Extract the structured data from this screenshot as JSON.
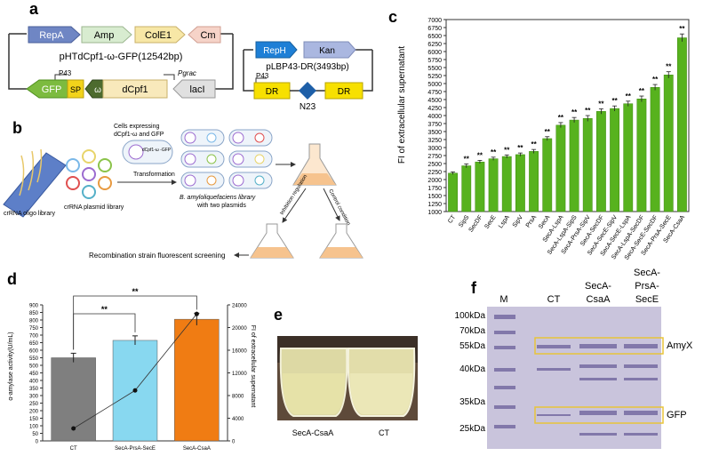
{
  "panel_a": {
    "letter": "a",
    "plasmid1": {
      "genes_top": [
        {
          "label": "RepA",
          "color": "#6f86c4"
        },
        {
          "label": "Amp",
          "color": "#d8ecd0"
        },
        {
          "label": "ColE1",
          "color": "#f7e7a6"
        },
        {
          "label": "Cm",
          "color": "#f6d3c8"
        }
      ],
      "name": "pHTdCpf1-ω-GFP(12542bp)",
      "promoter1": "P43",
      "promoter2": "Pgrac",
      "gfp": "GFP",
      "sp": "SP",
      "omega": "ω",
      "dcpf1": "dCpf1",
      "laci": "lacI"
    },
    "plasmid2": {
      "reph": "RepH",
      "kan": "Kan",
      "name": "pLBP43-DR(3493bp)",
      "promoter": "P43",
      "dr1": "DR",
      "dr2": "DR",
      "n23": "N23"
    }
  },
  "panel_b": {
    "letter": "b",
    "oligo_label": "crRNA oligo library",
    "plasmid_lib_label": "crRNA plasmid library",
    "cells_label_1": "Cells expressing",
    "cells_label_2": "dCpf1-ω and GFP",
    "transformation": "Transformation",
    "lib_label": "B. amyloliquefaciens library",
    "lib_label_2": "with two plasmids",
    "arrow_left": "Inhibition regulation",
    "arrow_right": "Control condition",
    "screening": "Recombination strain fluorescent screening",
    "cell_text": "dCpf1-ω -GFP",
    "cell_top": "pH"
  },
  "panel_c": {
    "letter": "c",
    "ylabel": "FI of extracellular supernatant",
    "chart_data": {
      "type": "bar",
      "categories": [
        "CT",
        "SipS",
        "SecDF",
        "SecE",
        "LspA",
        "SipV",
        "PrsA",
        "SecA",
        "SecA-LspA",
        "SecA-LspA-SipS",
        "SecA-PrsA-SipV",
        "SecA-SecDF",
        "SecA-SecE-SipV",
        "SecA-SecE-LspA",
        "SecA-LspA-SecDF",
        "SecA-SecE-SecDF",
        "SecA-PrsA-SecE",
        "SecA-CsaA"
      ],
      "values": [
        2200,
        2430,
        2550,
        2650,
        2720,
        2780,
        2880,
        3280,
        3700,
        3860,
        3910,
        4130,
        4220,
        4370,
        4520,
        4880,
        5270,
        6430
      ],
      "errors": [
        40,
        60,
        50,
        50,
        50,
        50,
        60,
        60,
        80,
        80,
        90,
        80,
        80,
        80,
        90,
        90,
        100,
        120
      ],
      "significance": [
        "",
        "**",
        "**",
        "**",
        "**",
        "**",
        "**",
        "**",
        "**",
        "**",
        "**",
        "**",
        "**",
        "**",
        "**",
        "**",
        "**",
        "**"
      ],
      "ylim": [
        1000,
        7000
      ],
      "yticks": [
        1000,
        1250,
        1500,
        1750,
        2000,
        2250,
        2500,
        2750,
        3000,
        3250,
        3500,
        3750,
        4000,
        4250,
        4500,
        4750,
        5000,
        5250,
        5500,
        5750,
        6000,
        6250,
        6500,
        6750,
        7000
      ],
      "ylabel": "FI of extracellular supernatant",
      "bar_color": "#57b21e"
    }
  },
  "panel_d": {
    "letter": "d",
    "chart_data": {
      "type": "bar",
      "categories": [
        "CT",
        "SecA-PrsA-SecE",
        "SecA-CsaA"
      ],
      "series": [
        {
          "name": "α-amylase activity(U/mL)",
          "values": [
            550,
            665,
            805
          ],
          "errors": [
            30,
            30,
            40
          ],
          "colors": [
            "#7f7f7f",
            "#88d8f0",
            "#f07c13"
          ],
          "axis": "left"
        },
        {
          "values": [
            2200,
            8900,
            22400
          ],
          "errors": [
            300,
            300,
            400
          ],
          "axis": "right",
          "type": "line"
        }
      ],
      "ylim_left": [
        0,
        900
      ],
      "yticks_left": [
        0,
        50,
        100,
        150,
        200,
        250,
        300,
        350,
        400,
        450,
        500,
        550,
        600,
        650,
        700,
        750,
        800,
        850,
        900
      ],
      "ylim_right": [
        0,
        24000
      ],
      "yticks_right": [
        0,
        4000,
        8000,
        12000,
        16000,
        20000,
        24000
      ],
      "ylabel_left": "α-amylase activity(U/mL)",
      "ylabel_right": "FI of extracellular supernatant",
      "significance": [
        {
          "from": 0,
          "to": 1,
          "label": "**"
        },
        {
          "from": 0,
          "to": 2,
          "label": "**"
        }
      ]
    }
  },
  "panel_e": {
    "letter": "e",
    "left_label": "SecA-CsaA",
    "right_label": "CT"
  },
  "panel_f": {
    "letter": "f",
    "lanes": [
      "M",
      "CT",
      "SecA-\nCsaA",
      "SecA-\nPrsA-\nSecE"
    ],
    "lane_m": "M",
    "lane_ct": "CT",
    "lane_2a": "SecA-",
    "lane_2b": "CsaA",
    "lane_3a": "SecA-",
    "lane_3b": "PrsA-",
    "lane_3c": "SecE",
    "markers": [
      "100kDa",
      "70kDa",
      "55kDa",
      "40kDa",
      "35kDa",
      "25kDa"
    ],
    "band_labels": [
      "AmyX",
      "GFP"
    ]
  }
}
